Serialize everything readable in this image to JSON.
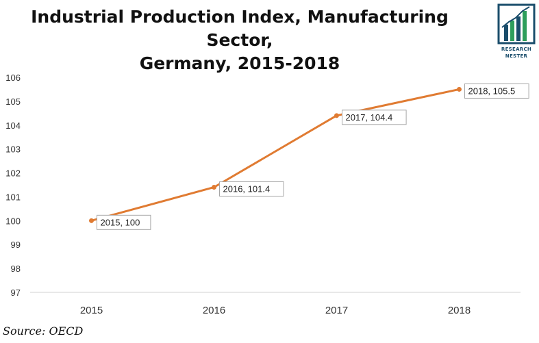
{
  "title_line1": "Industrial Production Index, Manufacturing Sector,",
  "title_line2": "Germany, 2015-2018",
  "logo": {
    "line1": "RESEARCH",
    "line2": "NESTER",
    "color_dark": "#1a4d6b",
    "color_green": "#2e9e5b"
  },
  "source": "Source: OECD",
  "chart_data": {
    "type": "line",
    "title": "Industrial Production Index, Manufacturing Sector, Germany, 2015-2018",
    "xlabel": "",
    "ylabel": "",
    "categories": [
      "2015",
      "2016",
      "2017",
      "2018"
    ],
    "y_ticks": [
      "97",
      "98",
      "99",
      "100",
      "101",
      "102",
      "103",
      "104",
      "105",
      "106"
    ],
    "ylim": [
      97,
      106
    ],
    "series": [
      {
        "values": [
          100,
          101.4,
          104.4,
          105.5
        ],
        "color": "#e07b32"
      }
    ],
    "data_labels": [
      "2015, 100",
      "2016, 101.4",
      "2017, 104.4",
      "2018, 105.5"
    ],
    "grid": false,
    "legend": "none"
  }
}
